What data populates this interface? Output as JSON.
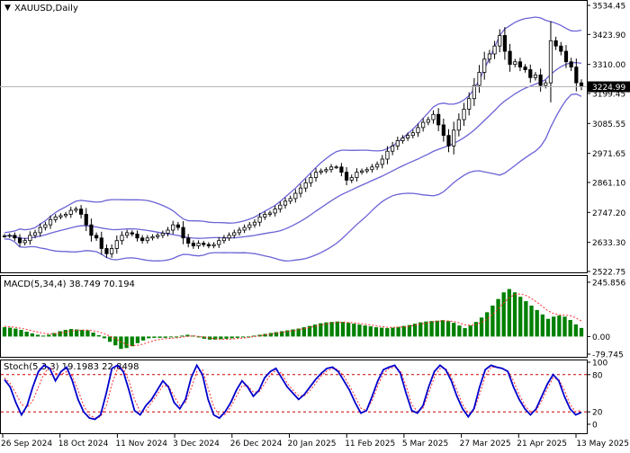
{
  "header": {
    "symbol_title": "XAUUSD,Daily",
    "macd_label": "MACD(5,34,4) 38.749 70.194",
    "stoch_label": "Stoch(5,3,3) 19.1983 22.8498"
  },
  "colors": {
    "candle": "#000000",
    "bollinger": "#6b63d6",
    "macd_histogram": "#008000",
    "macd_signal": "#ff2a2a",
    "stoch_main": "#0000cc",
    "stoch_signal": "#ff2a2a",
    "level_line": "#cc0000",
    "current_price_box": "#000000",
    "grid_border": "#000000"
  },
  "chart_data": [
    {
      "type": "candlestick",
      "symbol": "XAUUSD",
      "timeframe": "Daily",
      "price_axis_ticks": [
        "3534.45",
        "3423.90",
        "3310.00",
        "3199.45",
        "3085.55",
        "2971.65",
        "2861.10",
        "2747.20",
        "2633.30",
        "2522.75"
      ],
      "current_price": "3224.99",
      "ylim": [
        2522.75,
        3534.45
      ],
      "date_axis_labels": [
        "26 Sep 2024",
        "18 Oct 2024",
        "11 Nov 2024",
        "3 Dec 2024",
        "26 Dec 2024",
        "20 Jan 2025",
        "11 Feb 2025",
        "5 Mar 2025",
        "27 Mar 2025",
        "21 Apr 2025",
        "13 May 2025"
      ],
      "series": [
        {
          "name": "Close",
          "values": [
            2658,
            2660,
            2650,
            2632,
            2640,
            2660,
            2670,
            2690,
            2700,
            2720,
            2730,
            2735,
            2740,
            2755,
            2760,
            2740,
            2700,
            2660,
            2650,
            2610,
            2590,
            2610,
            2640,
            2660,
            2670,
            2665,
            2650,
            2640,
            2650,
            2655,
            2660,
            2668,
            2680,
            2700,
            2690,
            2650,
            2630,
            2620,
            2630,
            2625,
            2620,
            2625,
            2640,
            2650,
            2660,
            2670,
            2680,
            2690,
            2700,
            2710,
            2730,
            2740,
            2745,
            2760,
            2775,
            2790,
            2800,
            2820,
            2840,
            2860,
            2880,
            2900,
            2905,
            2910,
            2920,
            2920,
            2900,
            2870,
            2880,
            2900,
            2905,
            2910,
            2920,
            2930,
            2950,
            2980,
            3000,
            3020,
            3030,
            3040,
            3050,
            3070,
            3090,
            3100,
            3120,
            3080,
            3040,
            3000,
            3060,
            3100,
            3140,
            3180,
            3230,
            3280,
            3330,
            3350,
            3380,
            3420,
            3360,
            3310,
            3320,
            3300,
            3290,
            3260,
            3270,
            3230,
            3240,
            3400,
            3380,
            3360,
            3320,
            3300,
            3240,
            3225
          ]
        }
      ]
    },
    {
      "type": "bar",
      "title": "MACD(5,34,4)",
      "axis_ticks": [
        "245.856",
        "0.00",
        "-79.745"
      ],
      "ylim": [
        -79.745,
        245.856
      ],
      "series": [
        {
          "name": "MACD",
          "values": [
            42,
            40,
            36,
            30,
            22,
            14,
            8,
            4,
            8,
            16,
            24,
            30,
            34,
            32,
            30,
            28,
            18,
            6,
            -8,
            -24,
            -40,
            -56,
            -52,
            -44,
            -30,
            -18,
            -8,
            -6,
            -6,
            -6,
            -4,
            0,
            4,
            8,
            4,
            -4,
            -10,
            -14,
            -14,
            -12,
            -10,
            -8,
            -6,
            -4,
            0,
            4,
            8,
            12,
            16,
            20,
            24,
            28,
            32,
            36,
            42,
            48,
            54,
            60,
            64,
            66,
            68,
            66,
            62,
            58,
            54,
            50,
            46,
            42,
            40,
            38,
            40,
            44,
            48,
            52,
            58,
            64,
            68,
            70,
            72,
            74,
            70,
            62,
            50,
            38,
            50,
            66,
            86,
            110,
            140,
            170,
            200,
            215,
            200,
            180,
            160,
            140,
            120,
            100,
            80,
            90,
            95,
            90,
            75,
            55,
            38.749
          ]
        },
        {
          "name": "Signal",
          "values": [
            46,
            44,
            41,
            37,
            32,
            26,
            20,
            15,
            12,
            13,
            16,
            20,
            25,
            28,
            29,
            29,
            26,
            21,
            13,
            2,
            -10,
            -24,
            -36,
            -42,
            -40,
            -34,
            -26,
            -18,
            -13,
            -10,
            -8,
            -6,
            -3,
            1,
            3,
            1,
            -3,
            -7,
            -10,
            -12,
            -12,
            -11,
            -9,
            -7,
            -4,
            0,
            3,
            7,
            11,
            15,
            19,
            23,
            27,
            31,
            36,
            41,
            46,
            52,
            57,
            61,
            64,
            65,
            64,
            62,
            59,
            56,
            52,
            48,
            45,
            42,
            41,
            42,
            44,
            47,
            51,
            56,
            61,
            66,
            69,
            71,
            71,
            68,
            62,
            53,
            50,
            54,
            64,
            79,
            100,
            125,
            152,
            176,
            190,
            193,
            186,
            172,
            155,
            136,
            116,
            104,
            98,
            97,
            94,
            85,
            70.194
          ]
        }
      ]
    },
    {
      "type": "line",
      "title": "Stoch(5,3,3)",
      "axis_ticks": [
        "100",
        "80",
        "20",
        "0"
      ],
      "levels": [
        80,
        20
      ],
      "ylim": [
        0,
        100
      ],
      "series": [
        {
          "name": "%K",
          "values": [
            72,
            60,
            35,
            15,
            30,
            60,
            85,
            95,
            90,
            70,
            85,
            92,
            70,
            40,
            20,
            10,
            8,
            15,
            50,
            90,
            95,
            85,
            55,
            22,
            15,
            30,
            40,
            55,
            70,
            60,
            35,
            25,
            40,
            75,
            95,
            80,
            40,
            15,
            10,
            20,
            35,
            55,
            70,
            60,
            45,
            55,
            75,
            85,
            90,
            75,
            60,
            50,
            40,
            48,
            60,
            72,
            82,
            90,
            92,
            85,
            70,
            55,
            35,
            18,
            22,
            45,
            70,
            88,
            92,
            95,
            82,
            50,
            22,
            18,
            30,
            60,
            85,
            95,
            88,
            70,
            45,
            25,
            12,
            25,
            60,
            88,
            95,
            92,
            90,
            85,
            60,
            40,
            25,
            15,
            25,
            45,
            65,
            80,
            70,
            45,
            25,
            15,
            19.1983
          ]
        },
        {
          "name": "%D",
          "values": [
            75,
            66,
            50,
            32,
            27,
            38,
            60,
            82,
            92,
            82,
            80,
            85,
            78,
            55,
            30,
            15,
            10,
            12,
            30,
            65,
            90,
            90,
            70,
            40,
            20,
            22,
            35,
            48,
            62,
            62,
            45,
            30,
            35,
            58,
            85,
            88,
            58,
            28,
            14,
            16,
            28,
            45,
            62,
            62,
            52,
            52,
            65,
            80,
            87,
            82,
            66,
            55,
            46,
            46,
            54,
            66,
            78,
            86,
            90,
            88,
            78,
            62,
            45,
            26,
            22,
            38,
            62,
            82,
            90,
            92,
            86,
            62,
            32,
            20,
            26,
            50,
            76,
            90,
            90,
            76,
            55,
            32,
            18,
            22,
            48,
            78,
            92,
            92,
            90,
            86,
            70,
            48,
            30,
            20,
            22,
            38,
            58,
            75,
            72,
            55,
            32,
            20,
            22.8498
          ]
        }
      ]
    }
  ]
}
